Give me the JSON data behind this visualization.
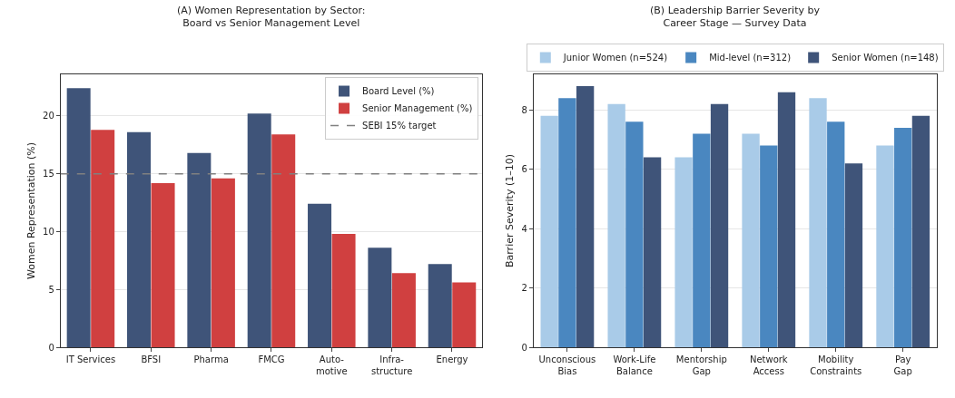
{
  "chart_data": [
    {
      "type": "bar",
      "title": "(A) Women Representation by Sector:\nBoard vs Senior Management Level",
      "ylabel": "Women Representation (%)",
      "categories": [
        "IT Services",
        "BFSI",
        "Pharma",
        "FMCG",
        "Auto-\nmotive",
        "Infra-\nstructure",
        "Energy"
      ],
      "series": [
        {
          "name": "Board Level (%)",
          "color": "#3f5479",
          "values": [
            22.4,
            18.6,
            16.8,
            20.2,
            12.4,
            8.6,
            7.2
          ]
        },
        {
          "name": "Senior Management (%)",
          "color": "#d04040",
          "values": [
            18.8,
            14.2,
            14.6,
            18.4,
            9.8,
            6.4,
            5.6
          ]
        }
      ],
      "ref_lines": [
        {
          "axis": "y",
          "value": 15,
          "label": "SEBI 15% target",
          "color": "#808080",
          "line_style": "dashed"
        }
      ],
      "ylim": [
        0,
        23.6
      ],
      "yticks": [
        0,
        5,
        10,
        15,
        20
      ],
      "grid": "y",
      "legend": "top right"
    },
    {
      "type": "bar",
      "title": "(B) Leadership Barrier Severity by\nCareer Stage — Survey Data",
      "ylabel": "Barrier Severity (1–10)",
      "categories": [
        "Unconscious\nBias",
        "Work-Life\nBalance",
        "Mentorship\nGap",
        "Network\nAccess",
        "Mobility\nConstraints",
        "Pay\nGap"
      ],
      "series": [
        {
          "name": "Junior Women (n=524)",
          "color": "#a9cbe8",
          "values": [
            7.8,
            8.2,
            6.4,
            7.2,
            8.4,
            6.8
          ]
        },
        {
          "name": "Mid-level (n=312)",
          "color": "#4a87c0",
          "values": [
            8.4,
            7.6,
            7.2,
            6.8,
            7.6,
            7.4
          ]
        },
        {
          "name": "Senior Women (n=148)",
          "color": "#3f5479",
          "values": [
            8.8,
            6.4,
            8.2,
            8.6,
            6.2,
            7.8
          ]
        }
      ],
      "ylim": [
        0,
        9.2
      ],
      "yticks": [
        0,
        2,
        4,
        6,
        8
      ],
      "grid": "y",
      "legend": "top"
    }
  ]
}
